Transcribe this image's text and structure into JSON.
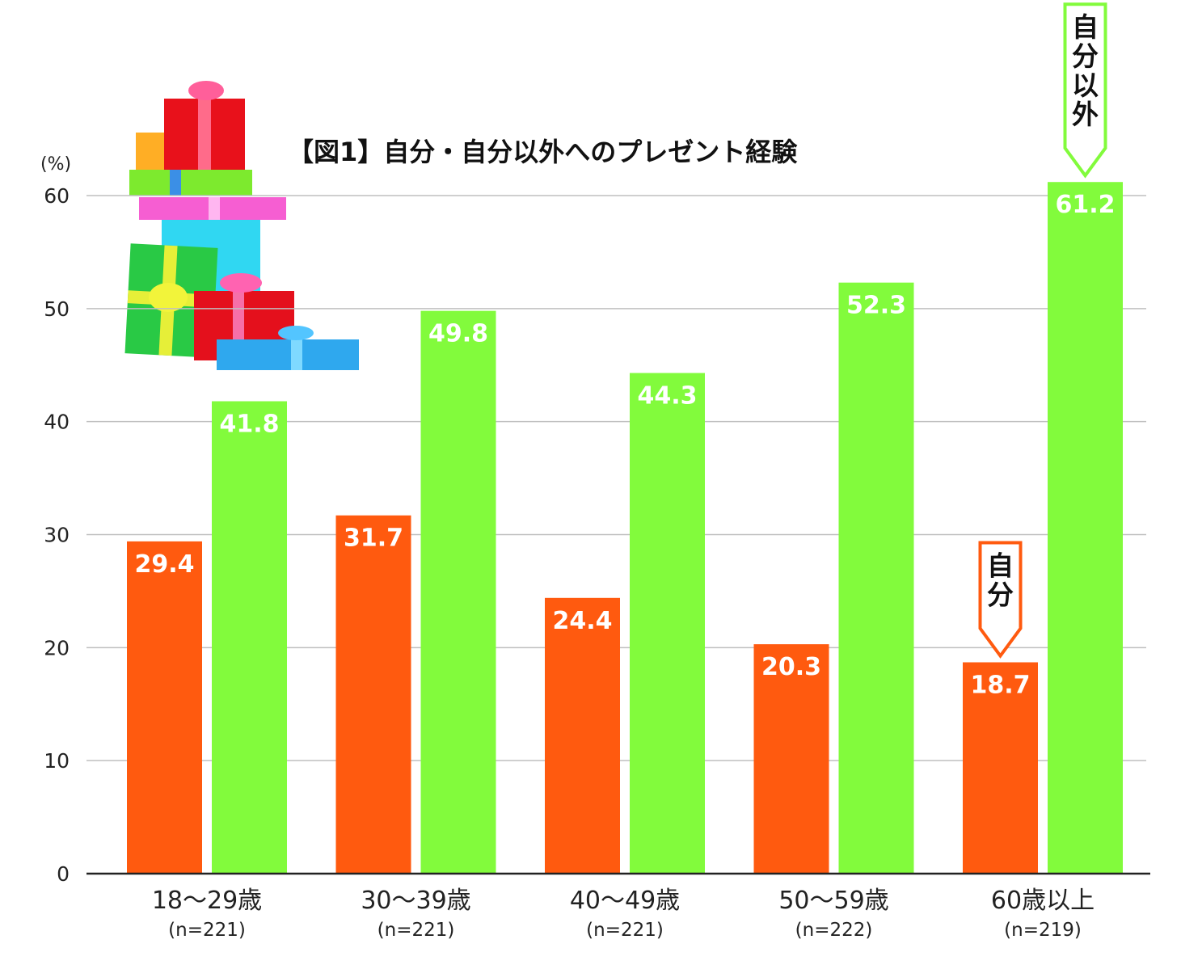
{
  "chart_data": {
    "type": "bar",
    "title": "【図1】自分・自分以外へのプレゼント経験",
    "ylabel": "(%)",
    "ylim": [
      0,
      60
    ],
    "yticks": [
      "0",
      "10",
      "20",
      "30",
      "40",
      "50",
      "60"
    ],
    "grid": true,
    "categories": [
      "18～29歳",
      "30～39歳",
      "40～49歳",
      "50～59歳",
      "60歳以上"
    ],
    "sample_sizes": [
      "(n=221)",
      "(n=221)",
      "(n=221)",
      "(n=222)",
      "(n=219)"
    ],
    "series": [
      {
        "name": "自分",
        "color": "#ff5a0f",
        "values": [
          29.4,
          31.7,
          24.4,
          20.3,
          18.7
        ]
      },
      {
        "name": "自分以外",
        "color": "#82fb3c",
        "values": [
          41.8,
          49.8,
          44.3,
          52.3,
          61.2
        ]
      }
    ],
    "value_labels": {
      "self": [
        "29.4",
        "31.7",
        "24.4",
        "20.3",
        "18.7"
      ],
      "others": [
        "41.8",
        "49.8",
        "44.3",
        "52.3",
        "61.2"
      ]
    },
    "callouts": [
      {
        "series": "自分",
        "label_chars": [
          "自",
          "分"
        ],
        "color": "#ff5a0f"
      },
      {
        "series": "自分以外",
        "label_chars": [
          "自",
          "分",
          "以",
          "外"
        ],
        "color": "#82fb3c"
      }
    ],
    "decoration": "gift-boxes-illustration"
  }
}
